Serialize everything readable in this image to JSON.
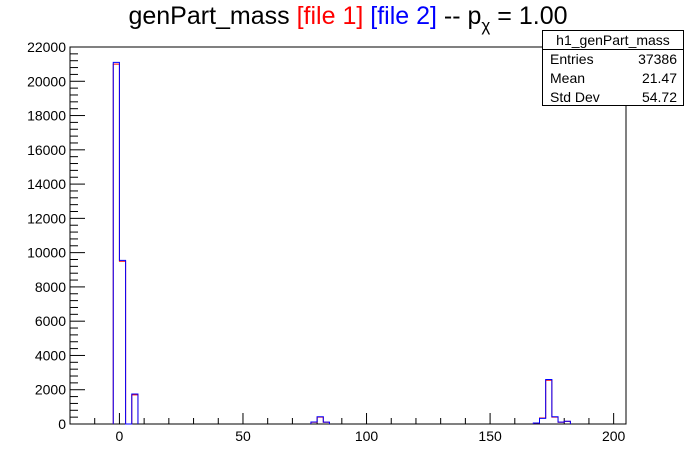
{
  "title": {
    "main": "genPart_mass ",
    "file1": "[file 1]",
    "file2": "[file 2]",
    "mid": " -- p",
    "sub": "χ",
    "tail": " = 1.00"
  },
  "stats": {
    "name": "h1_genPart_mass",
    "rows": [
      {
        "label": "Entries",
        "value": "37386"
      },
      {
        "label": "Mean",
        "value": "21.47"
      },
      {
        "label": "Std Dev",
        "value": "54.72"
      }
    ]
  },
  "chart_data": {
    "type": "step",
    "xlim": [
      -20,
      205
    ],
    "ylim": [
      0,
      22000
    ],
    "xticks": [
      0,
      50,
      100,
      150,
      200
    ],
    "yticks": [
      0,
      2000,
      4000,
      6000,
      8000,
      10000,
      12000,
      14000,
      16000,
      18000,
      20000,
      22000
    ],
    "bin_width": 2.5,
    "colors": {
      "file1": "#ff0000",
      "file2": "#0000ff"
    },
    "series": [
      {
        "name": "[file 1]",
        "color": "#ff0000",
        "bins": [
          {
            "x": -2.5,
            "y": 21000
          },
          {
            "x": 0,
            "y": 9500
          },
          {
            "x": 2.5,
            "y": 0
          },
          {
            "x": 5,
            "y": 1700
          },
          {
            "x": 77.5,
            "y": 100
          },
          {
            "x": 80,
            "y": 400
          },
          {
            "x": 82.5,
            "y": 100
          },
          {
            "x": 167.5,
            "y": 50
          },
          {
            "x": 170,
            "y": 350
          },
          {
            "x": 172.5,
            "y": 2550
          },
          {
            "x": 175,
            "y": 400
          },
          {
            "x": 177.5,
            "y": 100
          },
          {
            "x": 180,
            "y": 150
          }
        ]
      },
      {
        "name": "[file 2]",
        "color": "#0000ff",
        "bins": [
          {
            "x": -2.5,
            "y": 21100
          },
          {
            "x": 0,
            "y": 9550
          },
          {
            "x": 2.5,
            "y": 0
          },
          {
            "x": 5,
            "y": 1750
          },
          {
            "x": 77.5,
            "y": 120
          },
          {
            "x": 80,
            "y": 420
          },
          {
            "x": 82.5,
            "y": 110
          },
          {
            "x": 167.5,
            "y": 60
          },
          {
            "x": 170,
            "y": 330
          },
          {
            "x": 172.5,
            "y": 2600
          },
          {
            "x": 175,
            "y": 420
          },
          {
            "x": 177.5,
            "y": 110
          },
          {
            "x": 180,
            "y": 160
          }
        ]
      }
    ]
  }
}
